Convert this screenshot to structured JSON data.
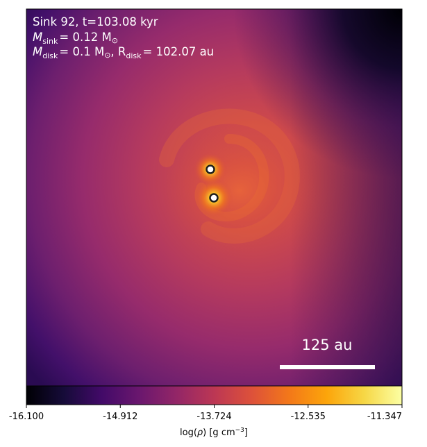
{
  "panel": {
    "line1": "Sink 92, t=103.08 kyr",
    "line2_prefix": "M",
    "line2_sub": "sink",
    "line2_rest": "= 0.12 M",
    "line2_sun": "⊙",
    "line3_prefix": "M",
    "line3_sub": "disk",
    "line3_rest": "= 0.1 M",
    "line3_sun": "⊙",
    "line3_comma": ", R",
    "line3_rsub": "disk",
    "line3_rval": "= 102.07 au"
  },
  "scalebar": {
    "label": "125 au",
    "length_au": 125
  },
  "colorbar": {
    "colormap": "inferno",
    "ticks": [
      "-16.100",
      "-14.912",
      "-13.724",
      "-12.535",
      "-11.347"
    ],
    "label_prefix": "log(",
    "label_rho": "ρ",
    "label_mid": ") [g cm",
    "label_exp": "−3",
    "label_suffix": "]"
  },
  "sinks": [
    {
      "name": "sink-a"
    },
    {
      "name": "sink-b"
    }
  ],
  "colors": {
    "map_edge": "#2b0a55",
    "map_mid": "#8c2b72",
    "map_core": "#d9513f",
    "sink_fill": "#ffffff",
    "sink_ring": "#1d1d1d",
    "glow": "#ffb300"
  }
}
